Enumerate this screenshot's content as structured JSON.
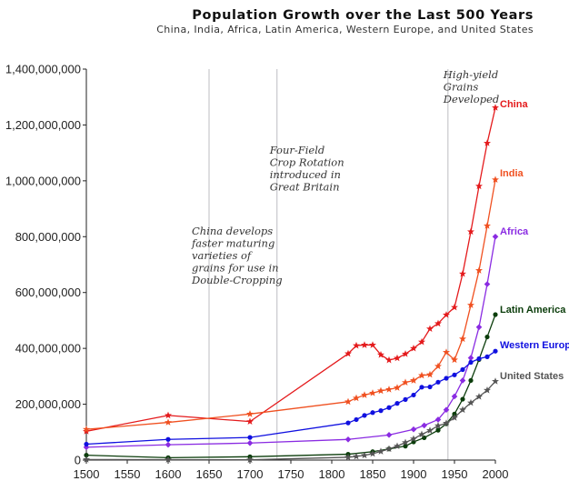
{
  "chart_data": {
    "type": "line",
    "title": "Population Growth over the Last 500 Years",
    "subtitle": "China, India, Africa, Latin America, Western Europe, and United States",
    "xlabel": "",
    "ylabel": "",
    "xlim": [
      1500,
      2000
    ],
    "ylim": [
      0,
      1400000000
    ],
    "x_ticks": [
      1500,
      1550,
      1600,
      1650,
      1700,
      1750,
      1800,
      1850,
      1900,
      1950,
      2000
    ],
    "y_ticks": [
      0,
      200000000,
      400000000,
      600000000,
      800000000,
      1000000000,
      1200000000,
      1400000000
    ],
    "y_tick_labels": [
      "0",
      "200,000,000",
      "400,000,000",
      "600,000,000",
      "800,000,000",
      "1,000,000,000",
      "1,200,000,000",
      "1,400,000,000"
    ],
    "grid": false,
    "annotations": [
      {
        "x": 1650,
        "lines": [
          "China develops",
          "faster maturing",
          "varieties of",
          "grains for use in",
          "Double-Cropping"
        ]
      },
      {
        "x": 1733,
        "lines": [
          "Four-Field",
          "Crop Rotation",
          "introduced in",
          "Great Britain"
        ]
      },
      {
        "x": 1942,
        "lines": [
          "High-yield",
          "Grains",
          "Developed"
        ]
      }
    ],
    "series": [
      {
        "name": "China",
        "color": "#e41a1c",
        "marker": "star",
        "x": [
          1500,
          1600,
          1700,
          1820,
          1830,
          1840,
          1850,
          1860,
          1870,
          1880,
          1890,
          1900,
          1910,
          1920,
          1930,
          1940,
          1950,
          1960,
          1970,
          1980,
          1990,
          2000
        ],
        "y": [
          103000000,
          160000000,
          138000000,
          381000000,
          410000000,
          412000000,
          412000000,
          377000000,
          358000000,
          365000000,
          380000000,
          400000000,
          423000000,
          470000000,
          489000000,
          520000000,
          547000000,
          667000000,
          818000000,
          981000000,
          1135000000,
          1262000000
        ]
      },
      {
        "name": "India",
        "color": "#f05020",
        "marker": "star",
        "x": [
          1500,
          1600,
          1700,
          1820,
          1830,
          1840,
          1850,
          1860,
          1870,
          1880,
          1890,
          1900,
          1910,
          1920,
          1930,
          1940,
          1950,
          1960,
          1970,
          1980,
          1990,
          2000
        ],
        "y": [
          110000000,
          135000000,
          165000000,
          209000000,
          222000000,
          233000000,
          240000000,
          248000000,
          253000000,
          259000000,
          278000000,
          285000000,
          303000000,
          306000000,
          336000000,
          386000000,
          359000000,
          434000000,
          555000000,
          679000000,
          839000000,
          1004000000
        ]
      },
      {
        "name": "Africa",
        "color": "#8a2be2",
        "marker": "diamond",
        "x": [
          1500,
          1600,
          1700,
          1820,
          1870,
          1900,
          1913,
          1930,
          1940,
          1950,
          1960,
          1970,
          1980,
          1990,
          2000
        ],
        "y": [
          46000000,
          55000000,
          61000000,
          74000000,
          90000000,
          110000000,
          124000000,
          145000000,
          180000000,
          228000000,
          285000000,
          366000000,
          476000000,
          630000000,
          800000000
        ]
      },
      {
        "name": "Latin America",
        "color": "#0b3d0b",
        "marker": "circle",
        "x": [
          1500,
          1600,
          1700,
          1820,
          1850,
          1870,
          1890,
          1900,
          1913,
          1930,
          1940,
          1950,
          1960,
          1970,
          1980,
          1990,
          2000
        ],
        "y": [
          17500000,
          8600000,
          12000000,
          21000000,
          30000000,
          40000000,
          50000000,
          65000000,
          80000000,
          107000000,
          130000000,
          165000000,
          218000000,
          285000000,
          360000000,
          441000000,
          521000000
        ]
      },
      {
        "name": "Western Europe",
        "color": "#1010e0",
        "marker": "circle",
        "x": [
          1500,
          1600,
          1700,
          1820,
          1830,
          1840,
          1850,
          1860,
          1870,
          1880,
          1890,
          1900,
          1910,
          1920,
          1930,
          1940,
          1950,
          1960,
          1970,
          1980,
          1990,
          2000
        ],
        "y": [
          57000000,
          74000000,
          81000000,
          133000000,
          145000000,
          160000000,
          170000000,
          177000000,
          188000000,
          203000000,
          217000000,
          233000000,
          261000000,
          262000000,
          279000000,
          293000000,
          305000000,
          324000000,
          350000000,
          363000000,
          370000000,
          390000000
        ]
      },
      {
        "name": "United States",
        "color": "#555555",
        "marker": "star",
        "x": [
          1500,
          1600,
          1700,
          1820,
          1830,
          1840,
          1850,
          1860,
          1870,
          1880,
          1890,
          1900,
          1910,
          1920,
          1930,
          1940,
          1950,
          1960,
          1970,
          1980,
          1990,
          2000
        ],
        "y": [
          2000000,
          1500000,
          1000000,
          10000000,
          13000000,
          17000000,
          23000000,
          31000000,
          40000000,
          50000000,
          63000000,
          76000000,
          92000000,
          106000000,
          123000000,
          132000000,
          152000000,
          180000000,
          205000000,
          227000000,
          250000000,
          282000000
        ]
      }
    ]
  }
}
